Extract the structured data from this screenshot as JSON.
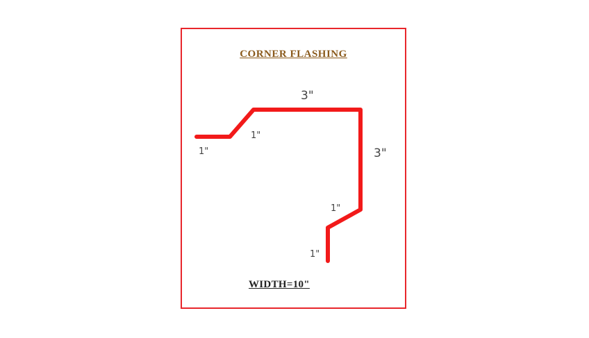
{
  "diagram": {
    "title": "CORNER FLASHING",
    "width_label": "WIDTH=10\"",
    "dimensions": {
      "top_segment": "3\"",
      "right_segment": "3\"",
      "left_flange": "1\"",
      "left_step": "1\"",
      "bottom_step": "1\"",
      "bottom_leg": "1\""
    },
    "colors": {
      "frame": "#e8262b",
      "profile": "#f21a1a",
      "title": "#8a5a1c",
      "text": "#444444"
    }
  }
}
